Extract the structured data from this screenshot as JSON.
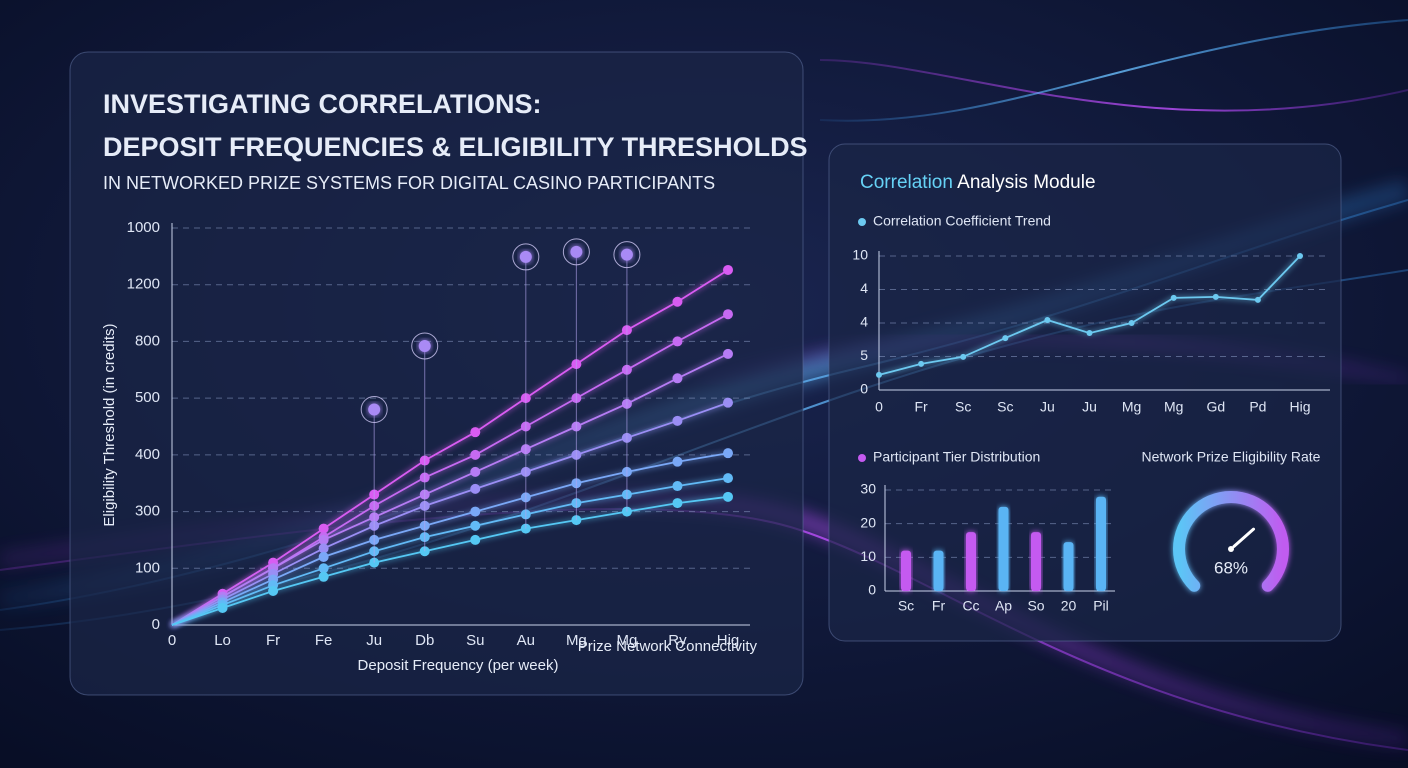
{
  "chart_data": [
    {
      "type": "line",
      "title_lines": [
        "INVESTIGATING CORRELATIONS:",
        "DEPOSIT FREQUENCIES & ELIGIBILITY THRESHOLDS"
      ],
      "subtitle": "IN NETWORKED PRIZE SYSTEMS FOR DIGITAL CASINO PARTICIPANTS",
      "ylabel": "Eligibility Threshold (in credits)",
      "xlabel": "Deposit Frequency (per week)",
      "xlabel2": "Prize Network Connectivity",
      "categories": [
        "0",
        "Lo",
        "Fr",
        "Fe",
        "Ju",
        "Db",
        "Su",
        "Au",
        "Mg",
        "Mg",
        "Ry",
        "Hig"
      ],
      "ylim": [
        0,
        7
      ],
      "yticks": [
        {
          "value": 0,
          "label": "0"
        },
        {
          "value": 1,
          "label": "100"
        },
        {
          "value": 2,
          "label": "300"
        },
        {
          "value": 3,
          "label": "400"
        },
        {
          "value": 4,
          "label": "500"
        },
        {
          "value": 5,
          "label": "800"
        },
        {
          "value": 6,
          "label": "1200"
        },
        {
          "value": 7,
          "label": "1000"
        }
      ],
      "grid": true,
      "series": [
        {
          "color": "#d95cf2",
          "values": [
            0,
            0.55,
            1.1,
            1.7,
            2.3,
            2.9,
            3.4,
            4.0,
            4.6,
            5.2,
            5.7,
            6.26
          ]
        },
        {
          "color": "#c66af2",
          "values": [
            0,
            0.5,
            1.0,
            1.55,
            2.1,
            2.6,
            3.0,
            3.5,
            4.0,
            4.5,
            5.0,
            5.48
          ]
        },
        {
          "color": "#b67cf4",
          "values": [
            0,
            0.5,
            1.0,
            1.5,
            1.9,
            2.3,
            2.7,
            3.1,
            3.5,
            3.9,
            4.35,
            4.78
          ]
        },
        {
          "color": "#9b8ef5",
          "values": [
            0,
            0.45,
            0.9,
            1.35,
            1.75,
            2.1,
            2.4,
            2.7,
            3.0,
            3.3,
            3.6,
            3.92
          ]
        },
        {
          "color": "#7aa8f7",
          "values": [
            0,
            0.4,
            0.8,
            1.2,
            1.5,
            1.75,
            2.0,
            2.25,
            2.5,
            2.7,
            2.88,
            3.03
          ]
        },
        {
          "color": "#62baf6",
          "values": [
            0,
            0.35,
            0.7,
            1.0,
            1.3,
            1.55,
            1.75,
            1.95,
            2.15,
            2.3,
            2.45,
            2.59
          ]
        },
        {
          "color": "#55c8f4",
          "values": [
            0,
            0.3,
            0.6,
            0.85,
            1.1,
            1.3,
            1.5,
            1.7,
            1.85,
            2.0,
            2.15,
            2.26
          ]
        },
        {
          "color": "#a98af5",
          "marker": "ring",
          "values": [
            null,
            null,
            null,
            null,
            3.8,
            4.92,
            null,
            6.49,
            6.58,
            6.53,
            null,
            null
          ]
        }
      ]
    },
    {
      "type": "line",
      "panel_title_highlight": "Correlation",
      "panel_title_rest": "Analysis Module",
      "categories": [
        "0",
        "Fr",
        "Sc",
        "Sc",
        "Ju",
        "Ju",
        "Mg",
        "Mg",
        "Gd",
        "Pd",
        "Hig"
      ],
      "ylim": [
        0,
        4
      ],
      "yticks": [
        {
          "value": 0,
          "label": "0"
        },
        {
          "value": 1,
          "label": "5"
        },
        {
          "value": 2,
          "label": "4"
        },
        {
          "value": 3,
          "label": "4"
        },
        {
          "value": 4,
          "label": "10"
        }
      ],
      "grid": true,
      "series": [
        {
          "name": "Correlation Coefficient Trend",
          "color": "#6cc9f0",
          "values": [
            0.45,
            0.78,
            0.99,
            1.55,
            2.09,
            1.7,
            2.0,
            2.75,
            2.78,
            2.69,
            4.0
          ]
        }
      ]
    },
    {
      "type": "bar",
      "categories": [
        "Sc",
        "Fr",
        "Cc",
        "Ap",
        "So",
        "20",
        "Pil"
      ],
      "ylim": [
        0,
        30
      ],
      "yticks": [
        0,
        10,
        20,
        30
      ],
      "grid": true,
      "series": [
        {
          "name": "Participant Tier Distribution",
          "color": "#c45af0",
          "values": [
            12,
            12,
            17.5,
            25,
            17.5,
            14.5,
            28
          ],
          "colors": [
            "#c45af0",
            "#5ab4f4",
            "#c45af0",
            "#5ab4f4",
            "#c45af0",
            "#5ab4f4",
            "#5ab4f4"
          ]
        }
      ]
    },
    {
      "type": "gauge",
      "title": "Network Prize Eligibility Rate",
      "value": 68,
      "value_label": "68%",
      "color": "#6fd0f5"
    }
  ]
}
